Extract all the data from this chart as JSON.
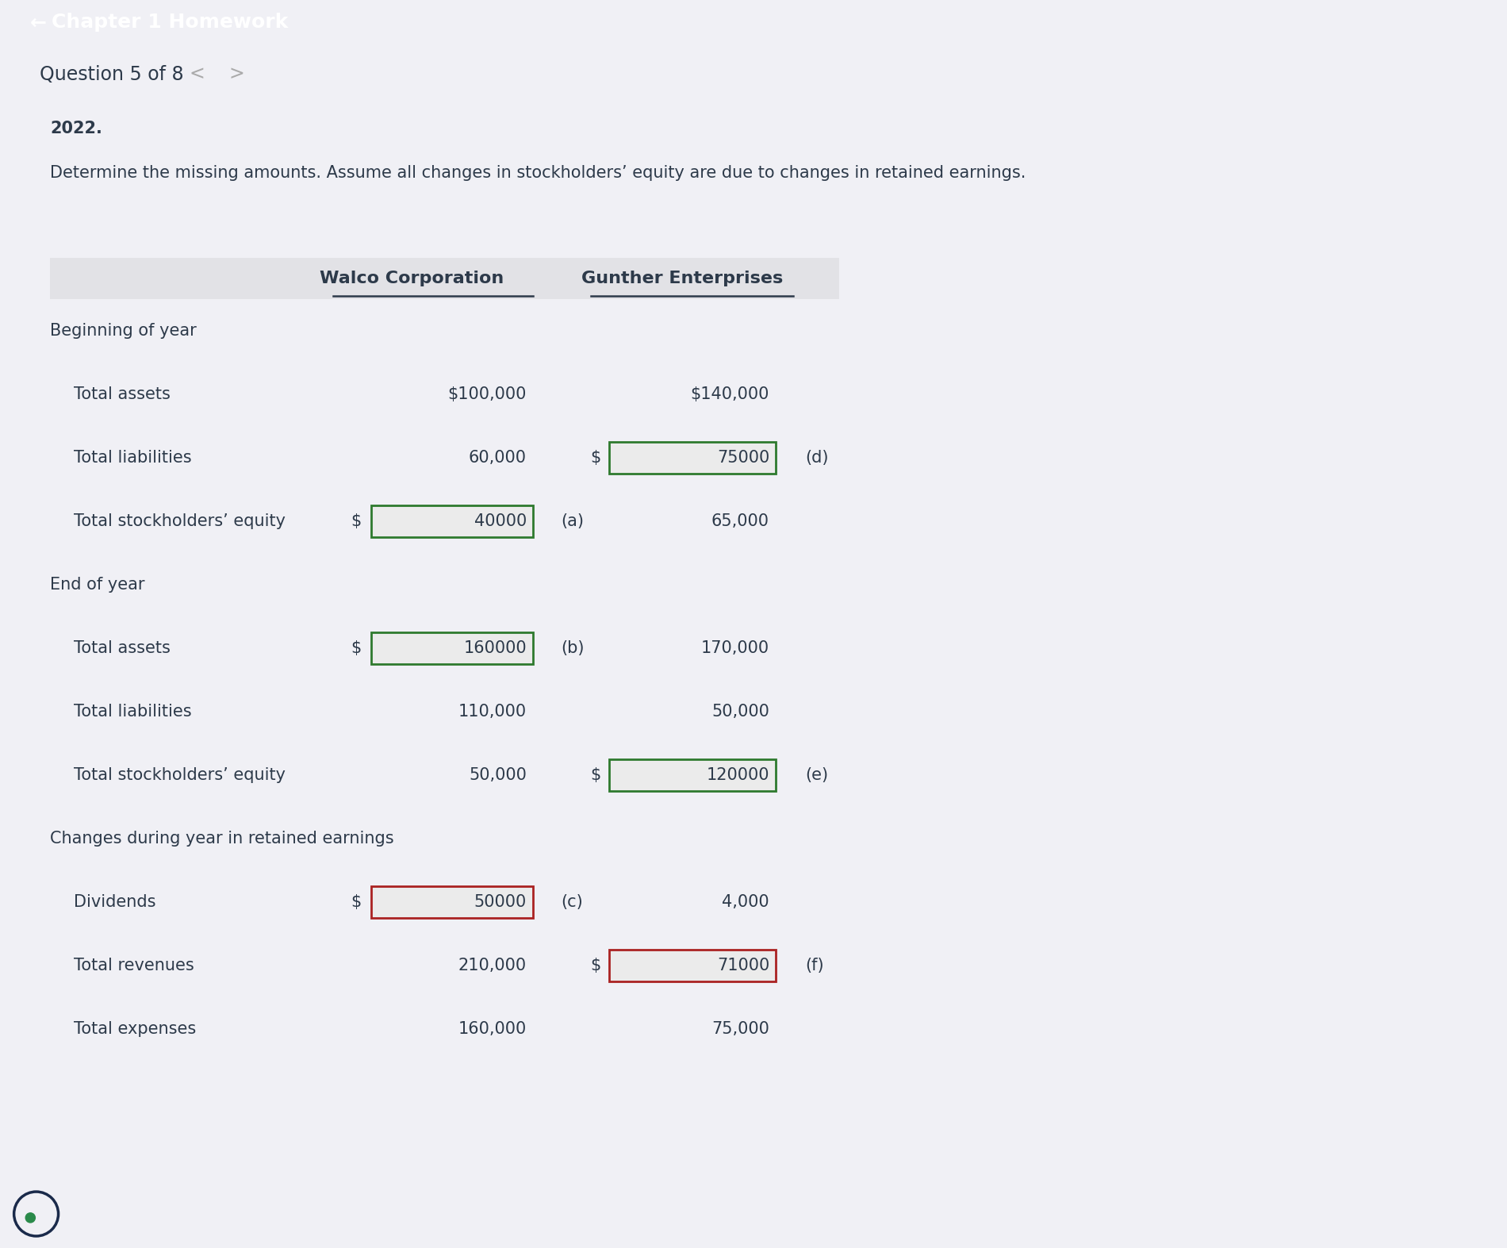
{
  "header_bg": "#1b2444",
  "header_text": "Chapter 1 Homework",
  "header_arrow": "←",
  "subheader_bg": "#f0f0f5",
  "subheader_text": "Question 5 of 8",
  "content_bg": "#ffffff",
  "page_bg": "#f0f0f5",
  "partial_text": "2022.",
  "instruction": "Determine the missing amounts. Assume all changes in stockholders’ equity are due to changes in retained earnings.",
  "col1_header": "Walco Corporation",
  "col2_header": "Gunther Enterprises",
  "text_color": "#2d3a4a",
  "rows": [
    {
      "label": "Beginning of year",
      "indent": 0,
      "walco_val": null,
      "walco_prefix": null,
      "walco_box": false,
      "walco_box_color": null,
      "walco_letter": null,
      "gunther_val": null,
      "gunther_prefix": null,
      "gunther_box": false,
      "gunther_box_color": null,
      "gunther_letter": null
    },
    {
      "label": "Total assets",
      "indent": 1,
      "walco_val": "$100,000",
      "walco_prefix": null,
      "walco_box": false,
      "walco_box_color": null,
      "walco_letter": null,
      "gunther_val": "$140,000",
      "gunther_prefix": null,
      "gunther_box": false,
      "gunther_box_color": null,
      "gunther_letter": null
    },
    {
      "label": "Total liabilities",
      "indent": 1,
      "walco_val": "60,000",
      "walco_prefix": null,
      "walco_box": false,
      "walco_box_color": null,
      "walco_letter": null,
      "gunther_val": "75000",
      "gunther_prefix": "$",
      "gunther_box": true,
      "gunther_box_color": "green",
      "gunther_letter": "(d)"
    },
    {
      "label": "Total stockholders’ equity",
      "indent": 1,
      "walco_val": "40000",
      "walco_prefix": "$",
      "walco_box": true,
      "walco_box_color": "green",
      "walco_letter": "(a)",
      "gunther_val": "65,000",
      "gunther_prefix": null,
      "gunther_box": false,
      "gunther_box_color": null,
      "gunther_letter": null
    },
    {
      "label": "End of year",
      "indent": 0,
      "walco_val": null,
      "walco_prefix": null,
      "walco_box": false,
      "walco_box_color": null,
      "walco_letter": null,
      "gunther_val": null,
      "gunther_prefix": null,
      "gunther_box": false,
      "gunther_box_color": null,
      "gunther_letter": null
    },
    {
      "label": "Total assets",
      "indent": 1,
      "walco_val": "160000",
      "walco_prefix": "$",
      "walco_box": true,
      "walco_box_color": "green",
      "walco_letter": "(b)",
      "gunther_val": "170,000",
      "gunther_prefix": null,
      "gunther_box": false,
      "gunther_box_color": null,
      "gunther_letter": null
    },
    {
      "label": "Total liabilities",
      "indent": 1,
      "walco_val": "110,000",
      "walco_prefix": null,
      "walco_box": false,
      "walco_box_color": null,
      "walco_letter": null,
      "gunther_val": "50,000",
      "gunther_prefix": null,
      "gunther_box": false,
      "gunther_box_color": null,
      "gunther_letter": null
    },
    {
      "label": "Total stockholders’ equity",
      "indent": 1,
      "walco_val": "50,000",
      "walco_prefix": null,
      "walco_box": false,
      "walco_box_color": null,
      "walco_letter": null,
      "gunther_val": "120000",
      "gunther_prefix": "$",
      "gunther_box": true,
      "gunther_box_color": "green",
      "gunther_letter": "(e)"
    },
    {
      "label": "Changes during year in retained earnings",
      "indent": 0,
      "walco_val": null,
      "walco_prefix": null,
      "walco_box": false,
      "walco_box_color": null,
      "walco_letter": null,
      "gunther_val": null,
      "gunther_prefix": null,
      "gunther_box": false,
      "gunther_box_color": null,
      "gunther_letter": null
    },
    {
      "label": "Dividends",
      "indent": 1,
      "walco_val": "50000",
      "walco_prefix": "$",
      "walco_box": true,
      "walco_box_color": "red",
      "walco_letter": "(c)",
      "gunther_val": "4,000",
      "gunther_prefix": null,
      "gunther_box": false,
      "gunther_box_color": null,
      "gunther_letter": null
    },
    {
      "label": "Total revenues",
      "indent": 1,
      "walco_val": "210,000",
      "walco_prefix": null,
      "walco_box": false,
      "walco_box_color": null,
      "walco_letter": null,
      "gunther_val": "71000",
      "gunther_prefix": "$",
      "gunther_box": true,
      "gunther_box_color": "red",
      "gunther_letter": "(f)"
    },
    {
      "label": "Total expenses",
      "indent": 1,
      "walco_val": "160,000",
      "walco_prefix": null,
      "walco_box": false,
      "walco_box_color": null,
      "walco_letter": null,
      "gunther_val": "75,000",
      "gunther_prefix": null,
      "gunther_box": false,
      "gunther_box_color": null,
      "gunther_letter": null
    }
  ]
}
